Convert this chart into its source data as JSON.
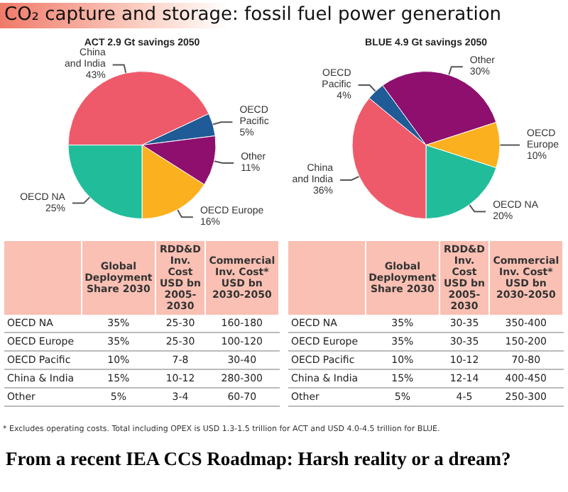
{
  "chart_data": [
    {
      "type": "pie",
      "title": "CO₂ capture and storage: fossil fuel power generation",
      "subtitle": "ACT 2.9 Gt savings 2050",
      "categories": [
        "China and India",
        "OECD Pacific",
        "Other",
        "OECD Europe",
        "OECD NA"
      ],
      "values": [
        43,
        5,
        11,
        16,
        25
      ],
      "value_labels": [
        "43%",
        "5%",
        "11%",
        "16%",
        "25%"
      ],
      "colors": [
        "#ee5a6a",
        "#1f5b96",
        "#8e0f6e",
        "#fbb01f",
        "#21bd9b"
      ],
      "annotations": [
        "* Excludes operating costs. Total including OPEX is USD 1.3-1.5 trillion for ACT and USD 4.0-4.5 trillion for BLUE.",
        "From a recent IEA CCS Roadmap: Harsh reality or a dream?"
      ]
    },
    {
      "type": "pie",
      "subtitle": "BLUE 4.9 Gt savings 2050",
      "categories": [
        "Other",
        "OECD Europe",
        "OECD NA",
        "China and India",
        "OECD Pacific"
      ],
      "values": [
        30,
        10,
        20,
        36,
        4
      ],
      "value_labels": [
        "30%",
        "10%",
        "20%",
        "36%",
        "4%"
      ],
      "colors": [
        "#8e0f6e",
        "#fbb01f",
        "#21bd9b",
        "#ee5a6a",
        "#1f5b96"
      ]
    },
    {
      "type": "other",
      "annotations": [
        "Global Deployment Share 2030",
        "RDD&D Inv. Cost USD bn 2005-2030",
        "Commercial Inv. Cost* USD bn 2030-2050",
        "OECD NA",
        "35%",
        "25-30",
        "160-180",
        "OECD Europe",
        "35%",
        "25-30",
        "100-120",
        "OECD Pacific",
        "10%",
        "7-8",
        "30-40",
        "China & India",
        "15%",
        "10-12",
        "280-300",
        "Other",
        "5%",
        "3-4",
        "60-70"
      ]
    },
    {
      "type": "other",
      "annotations": [
        "Global Deployment Share 2030",
        "RDD&D Inv. Cost USD bn 2005-2030",
        "Commercial Inv. Cost* USD bn 2030-2050",
        "OECD NA",
        "35%",
        "30-35",
        "350-400",
        "OECD Europe",
        "35%",
        "30-35",
        "150-200",
        "OECD Pacific",
        "10%",
        "10-12",
        "70-80",
        "China & India",
        "15%",
        "12-14",
        "400-450",
        "Other",
        "5%",
        "4-5",
        "250-300"
      ]
    }
  ]
}
